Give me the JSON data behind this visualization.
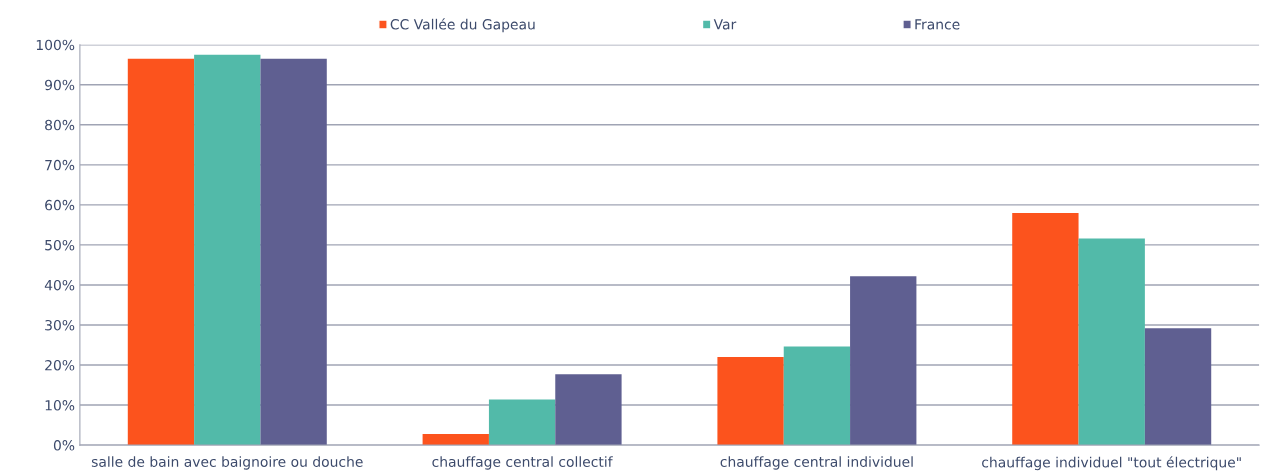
{
  "chart_data": {
    "type": "bar",
    "categories": [
      "salle de bain avec baignoire ou douche",
      "chauffage central collectif",
      "chauffage central individuel",
      "chauffage individuel \"tout électrique\""
    ],
    "series": [
      {
        "name": "CC Vallée du Gapeau",
        "color": "#fc531d",
        "values": [
          96.5,
          2.8,
          22,
          58
        ]
      },
      {
        "name": "Var",
        "color": "#52baa9",
        "values": [
          97.5,
          11.4,
          24.6,
          51.6
        ]
      },
      {
        "name": "France",
        "color": "#5f5f91",
        "values": [
          96.5,
          17.7,
          42.2,
          29.2
        ]
      }
    ],
    "ylim": [
      0,
      100
    ],
    "yticks": [
      {
        "value": 0,
        "label": "0%"
      },
      {
        "value": 10,
        "label": "10%"
      },
      {
        "value": 20,
        "label": "20%"
      },
      {
        "value": 30,
        "label": "30%"
      },
      {
        "value": 40,
        "label": "40%"
      },
      {
        "value": 50,
        "label": "50%"
      },
      {
        "value": 60,
        "label": "60%"
      },
      {
        "value": 70,
        "label": "70%"
      },
      {
        "value": 80,
        "label": "80%"
      },
      {
        "value": 90,
        "label": "90%"
      },
      {
        "value": 100,
        "label": "100%"
      }
    ],
    "grid": "y",
    "legend": "top"
  }
}
